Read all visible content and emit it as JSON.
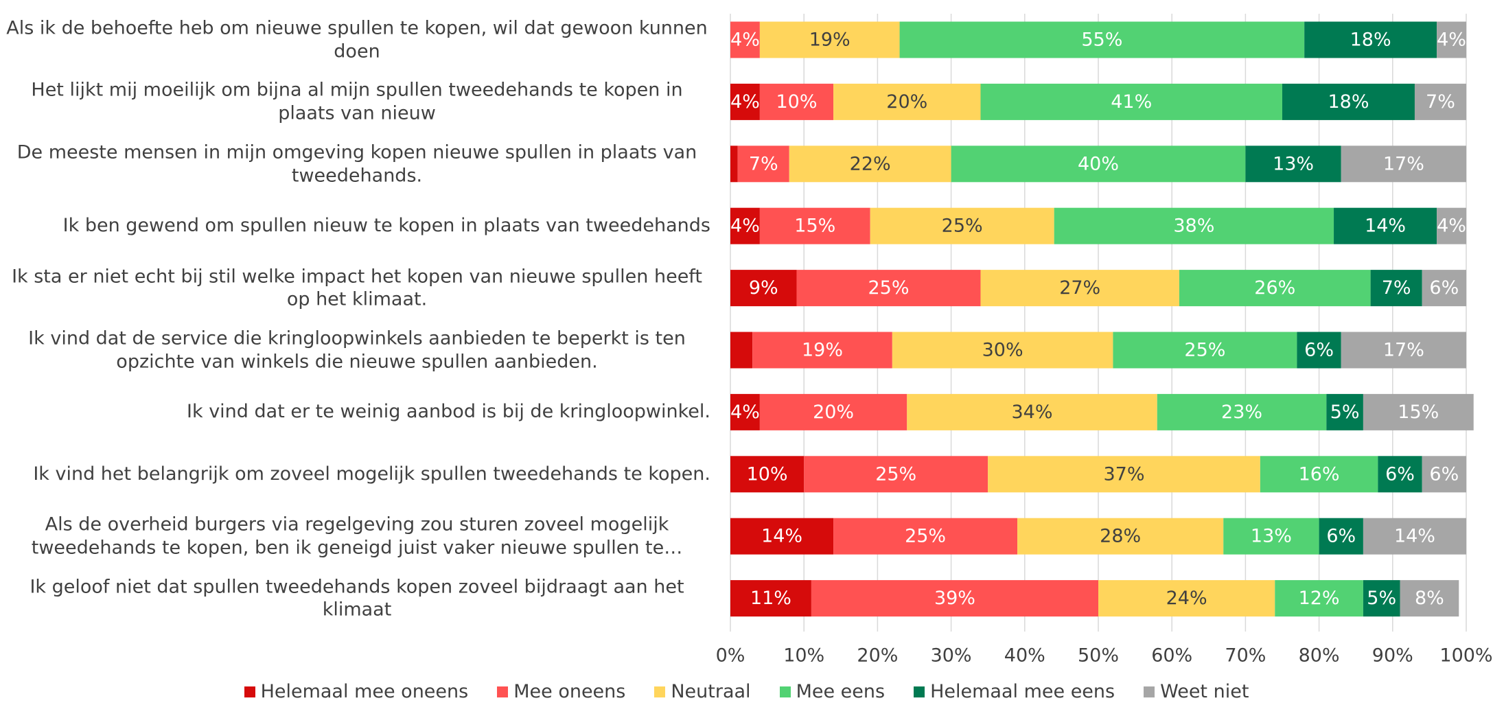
{
  "chart_data": {
    "type": "stacked_barh",
    "categories": [
      "Als ik de behoefte heb om nieuwe spullen te kopen, wil dat gewoon kunnen doen",
      "Het lijkt mij moeilijk om bijna al mijn spullen tweedehands te kopen in plaats van nieuw",
      "De meeste mensen in mijn omgeving kopen nieuwe spullen in plaats van tweedehands.",
      "Ik ben gewend om spullen nieuw te kopen in plaats van tweedehands",
      "Ik sta er niet echt bij stil welke impact het kopen van nieuwe spullen heeft op het klimaat.",
      "Ik vind dat de service die kringloopwinkels aanbieden te beperkt is ten opzichte van winkels die nieuwe spullen aanbieden.",
      "Ik vind dat er te weinig aanbod is bij de kringloopwinkel.",
      "Ik vind het belangrijk om zoveel mogelijk spullen tweedehands te kopen.",
      "Als de overheid burgers via regelgeving zou sturen zoveel mogelijk tweedehands te kopen, ben ik geneigd juist vaker nieuwe spullen te…",
      "Ik geloof niet dat spullen tweedehands kopen zoveel bijdraagt aan het klimaat"
    ],
    "series": [
      {
        "name": "Helemaal mee oneens",
        "color": "#d60b0b",
        "values": [
          0,
          4,
          1,
          4,
          9,
          3,
          4,
          10,
          14,
          11
        ],
        "value_labels": [
          null,
          "4%",
          null,
          "4%",
          "9%",
          null,
          "4%",
          "10%",
          "14%",
          "11%"
        ]
      },
      {
        "name": "Mee oneens",
        "color": "#ff5252",
        "values": [
          4,
          10,
          7,
          15,
          25,
          19,
          20,
          25,
          25,
          39
        ],
        "value_labels": [
          "4%",
          "10%",
          "7%",
          "15%",
          "25%",
          "19%",
          "20%",
          "25%",
          "25%",
          "39%"
        ]
      },
      {
        "name": "Neutraal",
        "color": "#ffd55c",
        "values": [
          19,
          20,
          22,
          25,
          27,
          30,
          34,
          37,
          28,
          24
        ],
        "value_labels": [
          "19%",
          "20%",
          "22%",
          "25%",
          "27%",
          "30%",
          "34%",
          "37%",
          "28%",
          "24%"
        ]
      },
      {
        "name": "Mee eens",
        "color": "#52d273",
        "values": [
          55,
          41,
          40,
          38,
          26,
          25,
          23,
          16,
          13,
          12
        ],
        "value_labels": [
          "55%",
          "41%",
          "40%",
          "38%",
          "26%",
          "25%",
          "23%",
          "16%",
          "13%",
          "12%"
        ]
      },
      {
        "name": "Helemaal mee eens",
        "color": "#007a52",
        "values": [
          18,
          18,
          13,
          14,
          7,
          6,
          5,
          6,
          6,
          5
        ],
        "value_labels": [
          "18%",
          "18%",
          "13%",
          "14%",
          "7%",
          "6%",
          "5%",
          "6%",
          "6%",
          "5%"
        ]
      },
      {
        "name": "Weet niet",
        "color": "#a6a6a6",
        "values": [
          4,
          7,
          17,
          4,
          6,
          17,
          15,
          6,
          14,
          8
        ],
        "value_labels": [
          "4%",
          "7%",
          "17%",
          "4%",
          "6%",
          "17%",
          "15%",
          "6%",
          "14%",
          "8%"
        ]
      }
    ],
    "xlim": [
      0,
      100
    ],
    "xticks": [
      {
        "value": 0,
        "label": "0%"
      },
      {
        "value": 10,
        "label": "10%"
      },
      {
        "value": 20,
        "label": "20%"
      },
      {
        "value": 30,
        "label": "30%"
      },
      {
        "value": 40,
        "label": "40%"
      },
      {
        "value": 50,
        "label": "50%"
      },
      {
        "value": 60,
        "label": "60%"
      },
      {
        "value": 70,
        "label": "70%"
      },
      {
        "value": 80,
        "label": "80%"
      },
      {
        "value": 90,
        "label": "90%"
      },
      {
        "value": 100,
        "label": "100%"
      }
    ],
    "grid": true,
    "legend": "bottom"
  }
}
